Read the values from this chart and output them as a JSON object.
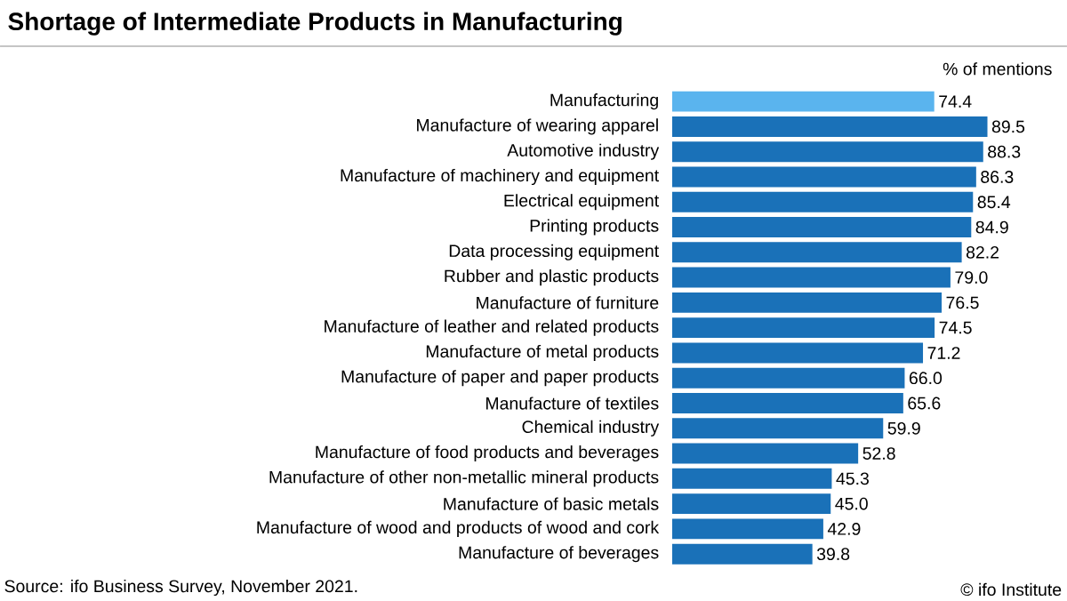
{
  "chart_data": {
    "type": "bar",
    "orientation": "horizontal",
    "title": "Shortage of Intermediate Products in Manufacturing",
    "xlabel": "% of mentions",
    "categories": [
      "Manufacturing",
      "Manufacture of wearing apparel",
      "Automotive industry",
      "Manufacture of machinery and equipment",
      "Electrical equipment",
      "Printing products",
      "Data processing equipment",
      "Rubber and plastic products",
      "Manufacture of furniture",
      "Manufacture of leather and related products",
      "Manufacture of metal products",
      "Manufacture of paper and paper products",
      "Manufacture of textiles",
      "Chemical industry",
      "Manufacture of food products and beverages",
      "Manufacture of other non-metallic mineral products",
      "Manufacture of basic metals",
      "Manufacture of wood and products of wood and cork",
      "Manufacture of beverages"
    ],
    "values": [
      74.4,
      89.5,
      88.3,
      86.3,
      85.4,
      84.9,
      82.2,
      79.0,
      76.5,
      74.5,
      71.2,
      66.0,
      65.6,
      59.9,
      52.8,
      45.3,
      45.0,
      42.9,
      39.8
    ],
    "value_labels": [
      "74.4",
      "89.5",
      "88.3",
      "86.3",
      "85.4",
      "84.9",
      "82.2",
      "79.0",
      "76.5",
      "74.5",
      "71.2",
      "66.0",
      "65.6",
      "59.9",
      "52.8",
      "45.3",
      "45.0",
      "42.9",
      "39.8"
    ],
    "colors": [
      "#5ab4ee",
      "#1a71b8",
      "#1a71b8",
      "#1a71b8",
      "#1a71b8",
      "#1a71b8",
      "#1a71b8",
      "#1a71b8",
      "#1a71b8",
      "#1a71b8",
      "#1a71b8",
      "#1a71b8",
      "#1a71b8",
      "#1a71b8",
      "#1a71b8",
      "#1a71b8",
      "#1a71b8",
      "#1a71b8",
      "#1a71b8"
    ],
    "annotations": [
      "Source: ifo Business Survey, November 2021.",
      "© ifo Institute"
    ]
  }
}
